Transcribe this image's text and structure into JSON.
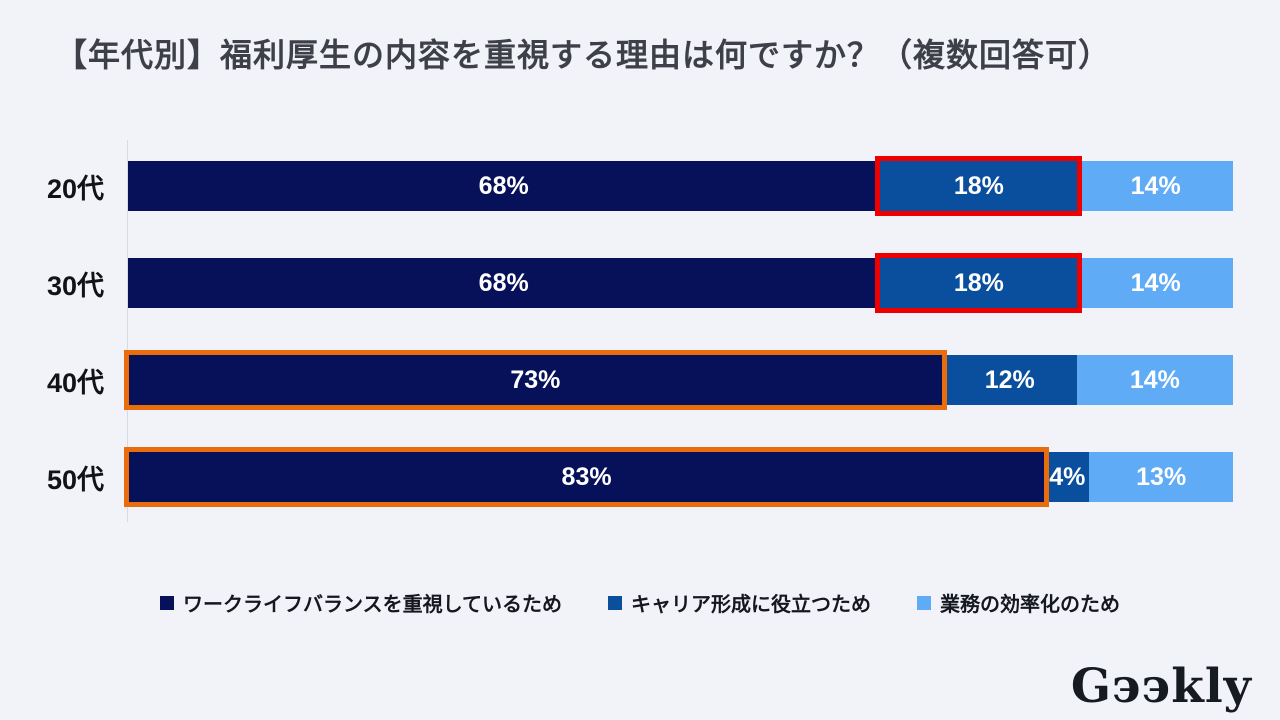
{
  "title": "【年代別】福利厚生の内容を重視する理由は何ですか？（複数回答可）",
  "logo": {
    "text": "Gээkly"
  },
  "colors": {
    "background": "#f2f3f8",
    "axis_line": "#d9dbe1",
    "title_text": "#3d4049",
    "category_text": "#111318",
    "value_text": "#ffffff",
    "legend_text": "#16181f",
    "highlight_red": "#ee0000",
    "highlight_orange": "#e96d0d"
  },
  "chart_data": {
    "type": "bar",
    "orientation": "horizontal-stacked",
    "title": "【年代別】福利厚生の内容を重視する理由は何ですか？（複数回答可）",
    "categories": [
      "20代",
      "30代",
      "40代",
      "50代"
    ],
    "series": [
      {
        "name": "ワークライフバランスを重視しているため",
        "color": "#06115a",
        "values": [
          68,
          68,
          73,
          83
        ]
      },
      {
        "name": "キャリア形成に役立つため",
        "color": "#0a4f9e",
        "values": [
          18,
          18,
          12,
          4
        ]
      },
      {
        "name": "業務の効率化のため",
        "color": "#5fabf5",
        "values": [
          14,
          14,
          14,
          13
        ]
      }
    ],
    "value_suffix": "%",
    "legend_position": "bottom",
    "grid": false,
    "highlights": [
      {
        "row": 0,
        "series": 1,
        "color": "#ee0000"
      },
      {
        "row": 1,
        "series": 1,
        "color": "#ee0000"
      },
      {
        "row": 2,
        "series": 0,
        "color": "#e96d0d"
      },
      {
        "row": 3,
        "series": 0,
        "color": "#e96d0d"
      }
    ]
  }
}
